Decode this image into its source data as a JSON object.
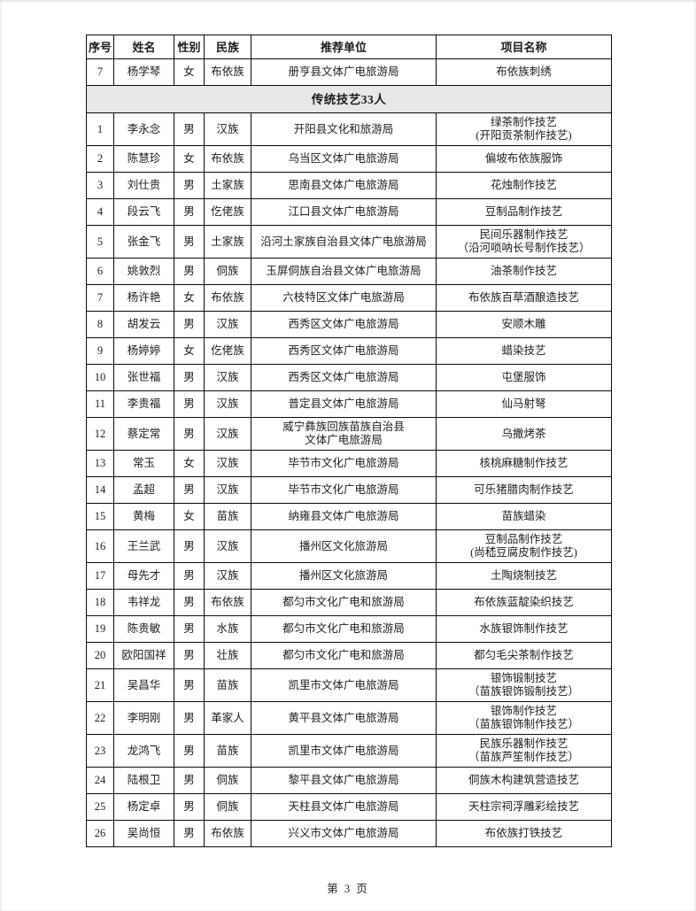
{
  "colors": {
    "section_bg": "#e7e7e7",
    "border": "#0a0a0a",
    "text": "#1c1c1c"
  },
  "table": {
    "columns": [
      "序号",
      "姓名",
      "性别",
      "民族",
      "推荐单位",
      "项目名称"
    ],
    "rows_top": [
      [
        "7",
        "杨学琴",
        "女",
        "布依族",
        "册亨县文体广电旅游局",
        "布依族刺绣"
      ]
    ],
    "section_label": "传统技艺33人",
    "rows": [
      [
        "1",
        "李永念",
        "男",
        "汉族",
        "开阳县文化和旅游局",
        "绿茶制作技艺\n(开阳贡茶制作技艺)"
      ],
      [
        "2",
        "陈慧珍",
        "女",
        "布依族",
        "乌当区文体广电旅游局",
        "偏坡布依族服饰"
      ],
      [
        "3",
        "刘仕贵",
        "男",
        "土家族",
        "思南县文体广电旅游局",
        "花烛制作技艺"
      ],
      [
        "4",
        "段云飞",
        "男",
        "仡佬族",
        "江口县文体广电旅游局",
        "豆制品制作技艺"
      ],
      [
        "5",
        "张金飞",
        "男",
        "土家族",
        "沿河土家族自治县文体广电旅游局",
        "民间乐器制作技艺\n（沿河唢呐长号制作技艺）"
      ],
      [
        "6",
        "姚敦烈",
        "男",
        "侗族",
        "玉屏侗族自治县文体广电旅游局",
        "油茶制作技艺"
      ],
      [
        "7",
        "杨许艳",
        "女",
        "布依族",
        "六枝特区文体广电旅游局",
        "布依族百草酒酿造技艺"
      ],
      [
        "8",
        "胡发云",
        "男",
        "汉族",
        "西秀区文体广电旅游局",
        "安顺木雕"
      ],
      [
        "9",
        "杨婷婷",
        "女",
        "仡佬族",
        "西秀区文体广电旅游局",
        "蜡染技艺"
      ],
      [
        "10",
        "张世福",
        "男",
        "汉族",
        "西秀区文体广电旅游局",
        "屯堡服饰"
      ],
      [
        "11",
        "李贵福",
        "男",
        "汉族",
        "普定县文体广电旅游局",
        "仙马射弩"
      ],
      [
        "12",
        "蔡定常",
        "男",
        "汉族",
        "威宁彝族回族苗族自治县\n文体广电旅游局",
        "乌撒烤茶"
      ],
      [
        "13",
        "常玉",
        "女",
        "汉族",
        "毕节市文化广电旅游局",
        "核桃麻糖制作技艺"
      ],
      [
        "14",
        "孟超",
        "男",
        "汉族",
        "毕节市文化广电旅游局",
        "可乐猪腊肉制作技艺"
      ],
      [
        "15",
        "黄梅",
        "女",
        "苗族",
        "纳雍县文体广电旅游局",
        "苗族蜡染"
      ],
      [
        "16",
        "王兰武",
        "男",
        "汉族",
        "播州区文化旅游局",
        "豆制品制作技艺\n(尚嵇豆腐皮制作技艺)"
      ],
      [
        "17",
        "母先才",
        "男",
        "汉族",
        "播州区文化旅游局",
        "土陶烧制技艺"
      ],
      [
        "18",
        "韦祥龙",
        "男",
        "布依族",
        "都匀市文化广电和旅游局",
        "布依族蓝靛染织技艺"
      ],
      [
        "19",
        "陈贵敏",
        "男",
        "水族",
        "都匀市文化广电和旅游局",
        "水族银饰制作技艺"
      ],
      [
        "20",
        "欧阳国祥",
        "男",
        "壮族",
        "都匀市文化广电和旅游局",
        "都匀毛尖茶制作技艺"
      ],
      [
        "21",
        "吴昌华",
        "男",
        "苗族",
        "凯里市文体广电旅游局",
        "银饰锻制技艺\n（苗族银饰锻制技艺）"
      ],
      [
        "22",
        "李明刚",
        "男",
        "革家人",
        "黄平县文体广电旅游局",
        "银饰制作技艺\n（苗族银饰制作技艺）"
      ],
      [
        "23",
        "龙鸿飞",
        "男",
        "苗族",
        "凯里市文体广电旅游局",
        "民族乐器制作技艺\n（苗族芦笙制作技艺）"
      ],
      [
        "24",
        "陆根卫",
        "男",
        "侗族",
        "黎平县文体广电旅游局",
        "侗族木构建筑营造技艺"
      ],
      [
        "25",
        "杨定卓",
        "男",
        "侗族",
        "天柱县文体广电旅游局",
        "天柱宗祠浮雕彩绘技艺"
      ],
      [
        "26",
        "吴尚恒",
        "男",
        "布依族",
        "兴义市文体广电旅游局",
        "布依族打铁技艺"
      ]
    ]
  },
  "footer": {
    "page_label": "第 3 页"
  }
}
